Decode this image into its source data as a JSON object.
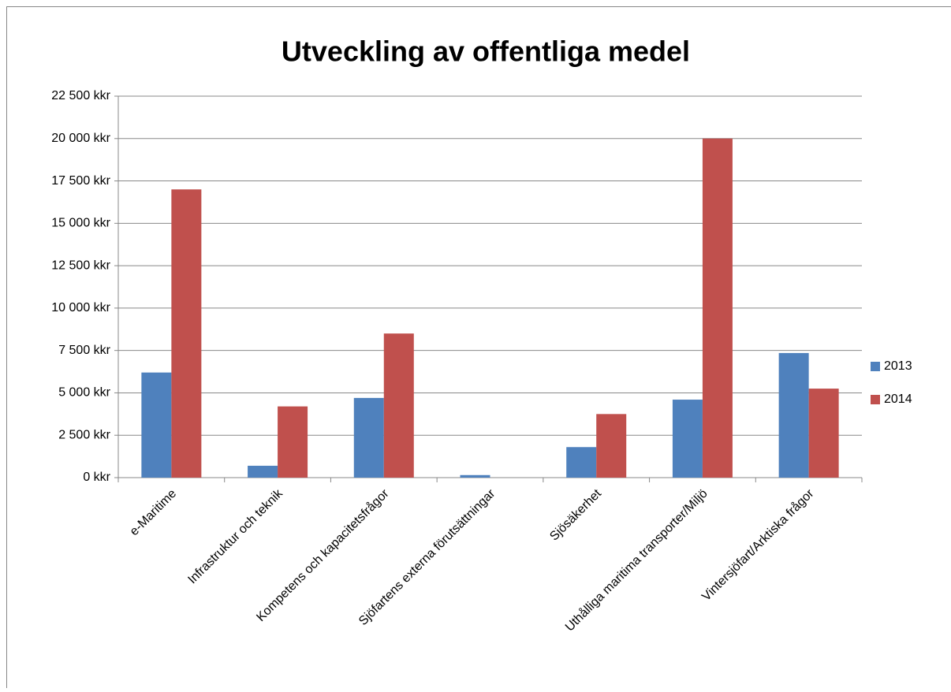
{
  "chart_data": {
    "type": "bar",
    "title": "Utveckling av offentliga medel",
    "categories": [
      "e-Maritime",
      "Infrastruktur och teknik",
      "Kompetens och kapacitetsfrågor",
      "Sjöfartens externa förutsättningar",
      "Sjösäkerhet",
      "Uthålliga maritima transporter/Miljö",
      "Vintersjöfart/Arktiska frågor"
    ],
    "series": [
      {
        "name": "2013",
        "color": "#4f81bd",
        "values": [
          6200,
          700,
          4700,
          150,
          1800,
          4600,
          7350
        ]
      },
      {
        "name": "2014",
        "color": "#c0504d",
        "values": [
          17000,
          4200,
          8500,
          0,
          3750,
          20000,
          5250
        ]
      }
    ],
    "ylim": [
      0,
      22500
    ],
    "yticks": [
      {
        "value": 0,
        "label": "0 kkr"
      },
      {
        "value": 2500,
        "label": "2 500 kkr"
      },
      {
        "value": 5000,
        "label": "5 000 kkr"
      },
      {
        "value": 7500,
        "label": "7 500 kkr"
      },
      {
        "value": 10000,
        "label": "10 000 kkr"
      },
      {
        "value": 12500,
        "label": "12 500 kkr"
      },
      {
        "value": 15000,
        "label": "15 000 kkr"
      },
      {
        "value": 17500,
        "label": "17 500 kkr"
      },
      {
        "value": 20000,
        "label": "20 000 kkr"
      },
      {
        "value": 22500,
        "label": "22 500 kkr"
      }
    ],
    "grid": true,
    "legend": "right"
  }
}
